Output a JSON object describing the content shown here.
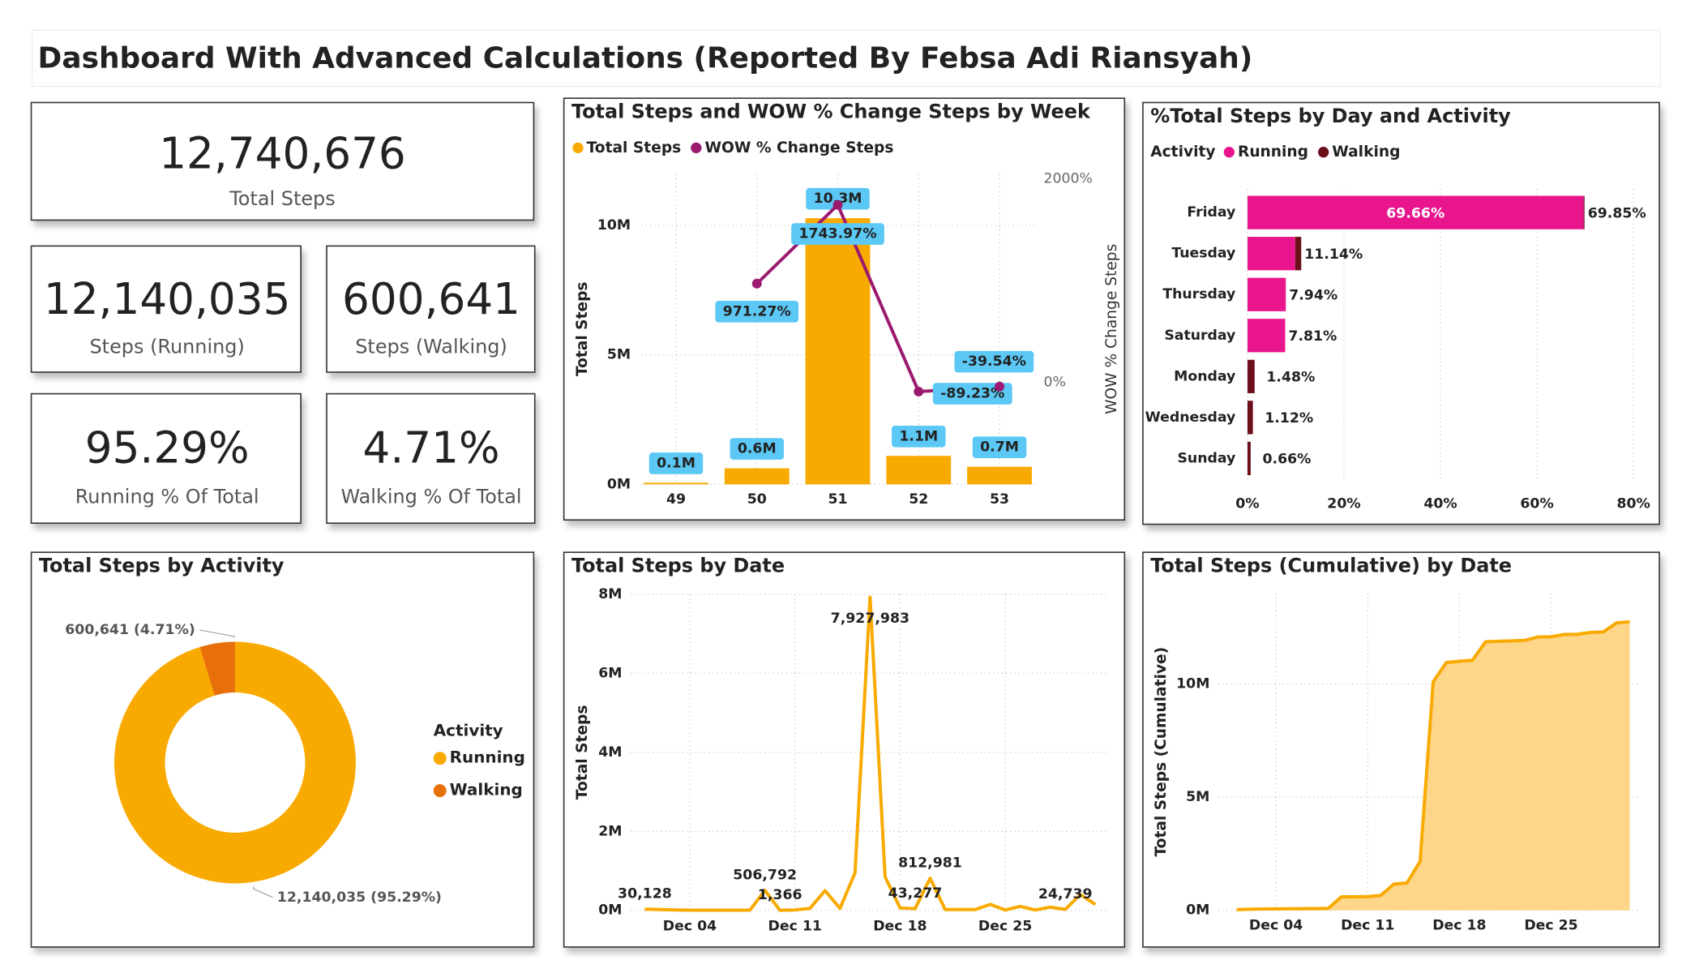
{
  "title": "Dashboard With Advanced Calculations (Reported By Febsa Adi Riansyah)",
  "kpis": [
    {
      "value": "12,740,676",
      "label": "Total Steps"
    },
    {
      "value": "12,140,035",
      "label": "Steps (Running)"
    },
    {
      "value": "600,641",
      "label": "Steps (Walking)"
    },
    {
      "value": "95.29%",
      "label": "Running % Of Total"
    },
    {
      "value": "4.71%",
      "label": "Walking % Of Total"
    }
  ],
  "chart_data": [
    {
      "type": "combo",
      "title": "Total Steps and WOW % Change Steps by Week",
      "categories": [
        "49",
        "50",
        "51",
        "52",
        "53"
      ],
      "series": [
        {
          "name": "Total Steps",
          "type": "bar",
          "color": "#f9aa00",
          "values": [
            60000,
            620000,
            10280000,
            1100000,
            680000
          ],
          "value_labels": [
            "0.1M",
            "0.6M",
            "10.3M",
            "1.1M",
            "0.7M"
          ]
        },
        {
          "name": "WOW % Change Steps",
          "type": "line",
          "axis": "y2",
          "color": "#9b1a6f",
          "values": [
            null,
            971.27,
            1743.97,
            -89.23,
            -39.54
          ],
          "value_labels": [
            null,
            "971.27%",
            "1743.97%",
            "-89.23%",
            "-39.54%"
          ]
        }
      ],
      "ylabel": "Total Steps",
      "y2label": "WOW % Change Steps",
      "ylim": [
        0,
        12000000
      ],
      "yticks": [
        {
          "value": 0,
          "label": "0M"
        },
        {
          "value": 5000000,
          "label": "5M"
        },
        {
          "value": 10000000,
          "label": "10M"
        }
      ],
      "y2lim": [
        -1000,
        2050
      ],
      "y2ticks": [
        {
          "value": 0,
          "label": "0%"
        },
        {
          "value": 2000,
          "label": "2000%"
        }
      ],
      "grid": true,
      "legend": "top-left"
    },
    {
      "type": "stacked_hbar",
      "title": "%Total Steps by Day and Activity",
      "legend_title": "Activity",
      "categories": [
        "Friday",
        "Tuesday",
        "Thursday",
        "Saturday",
        "Monday",
        "Wednesday",
        "Sunday"
      ],
      "series": [
        {
          "name": "Running",
          "color": "#e8158c",
          "values": [
            69.66,
            9.88,
            7.94,
            7.81,
            0,
            0,
            0
          ],
          "value_labels": [
            "69.66%",
            null,
            null,
            null,
            null,
            null,
            null
          ]
        },
        {
          "name": "Walking",
          "color": "#6b0f1a",
          "values": [
            0.19,
            1.26,
            0,
            0,
            1.48,
            1.12,
            0.66
          ]
        }
      ],
      "total_labels": [
        "69.85%",
        "11.14%",
        "7.94%",
        "7.81%",
        "1.48%",
        "1.12%",
        "0.66%"
      ],
      "xlim": [
        0,
        80
      ],
      "xticks": [
        {
          "value": 0,
          "label": "0%"
        },
        {
          "value": 20,
          "label": "20%"
        },
        {
          "value": 40,
          "label": "40%"
        },
        {
          "value": 60,
          "label": "60%"
        },
        {
          "value": 80,
          "label": "80%"
        }
      ],
      "grid": true
    },
    {
      "type": "donut",
      "title": "Total Steps by Activity",
      "legend_title": "Activity",
      "categories": [
        "Running",
        "Walking"
      ],
      "values": [
        12140035,
        600641
      ],
      "value_labels": [
        "12,140,035 (95.29%)",
        "600,641 (4.71%)"
      ],
      "colors": [
        "#f9aa00",
        "#e8700a"
      ]
    },
    {
      "type": "line",
      "title": "Total Steps by Date",
      "ylabel": "Total Steps",
      "color": "#f9aa00",
      "categories": [
        null,
        null,
        null,
        "Dec 04",
        null,
        null,
        null,
        null,
        null,
        null,
        "Dec 11",
        null,
        null,
        null,
        null,
        null,
        null,
        "Dec 18",
        null,
        null,
        null,
        null,
        null,
        null,
        "Dec 25",
        null,
        null,
        null,
        null,
        null,
        null
      ],
      "values": [
        30128,
        20000,
        10000,
        5000,
        5000,
        5000,
        5000,
        5000,
        506792,
        1366,
        10000,
        50000,
        500000,
        50000,
        950000,
        7927983,
        850000,
        60000,
        43277,
        812981,
        20000,
        20000,
        20000,
        150000,
        10000,
        100000,
        10000,
        80000,
        24739,
        400000,
        150000
      ],
      "value_labels": [
        "30,128",
        null,
        null,
        null,
        null,
        null,
        null,
        null,
        "506,792",
        "1,366",
        null,
        null,
        null,
        null,
        null,
        "7,927,983",
        null,
        null,
        "43,277",
        "812,981",
        null,
        null,
        null,
        null,
        null,
        null,
        null,
        null,
        "24,739",
        null,
        null
      ],
      "ylim": [
        0,
        8000000
      ],
      "yticks": [
        {
          "value": 0,
          "label": "0M"
        },
        {
          "value": 2000000,
          "label": "2M"
        },
        {
          "value": 4000000,
          "label": "4M"
        },
        {
          "value": 6000000,
          "label": "6M"
        },
        {
          "value": 8000000,
          "label": "8M"
        }
      ],
      "grid": true
    },
    {
      "type": "area",
      "title": "Total Steps (Cumulative) by Date",
      "ylabel": "Total Steps (Cumulative)",
      "color": "#f9aa00",
      "fill_color": "#fdd68a",
      "categories": [
        null,
        null,
        null,
        "Dec 04",
        null,
        null,
        null,
        null,
        null,
        null,
        "Dec 11",
        null,
        null,
        null,
        null,
        null,
        null,
        "Dec 18",
        null,
        null,
        null,
        null,
        null,
        null,
        "Dec 25",
        null,
        null,
        null,
        null,
        null,
        null
      ],
      "values": [
        30128,
        50000,
        60000,
        65000,
        70000,
        75000,
        80000,
        90000,
        600000,
        600000,
        610000,
        660000,
        1160000,
        1210000,
        2160000,
        10090000,
        10940000,
        11000000,
        11043000,
        11860000,
        11880000,
        11900000,
        11920000,
        12070000,
        12080000,
        12180000,
        12190000,
        12270000,
        12295000,
        12695000,
        12740676
      ],
      "ylim": [
        0,
        14000000
      ],
      "yticks": [
        {
          "value": 0,
          "label": "0M"
        },
        {
          "value": 5000000,
          "label": "5M"
        },
        {
          "value": 10000000,
          "label": "10M"
        }
      ],
      "grid": true
    }
  ]
}
